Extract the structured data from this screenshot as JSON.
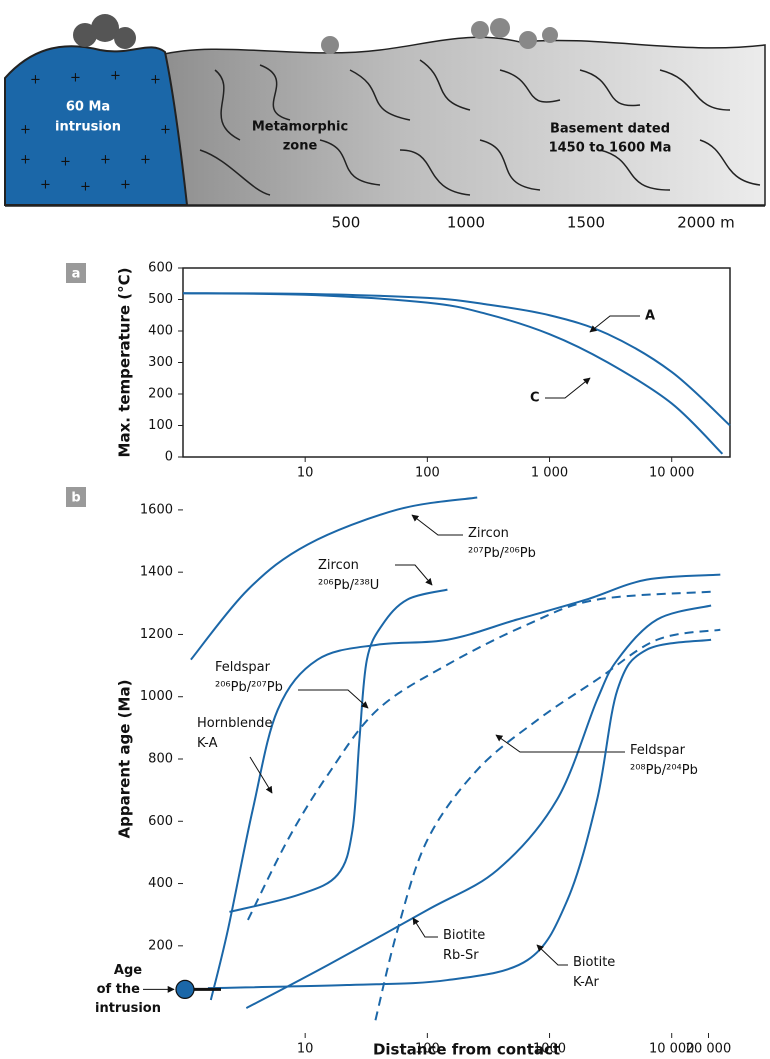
{
  "cross_section": {
    "intrusion_label": [
      "60 Ma",
      "intrusion"
    ],
    "zone_label": [
      "Metamorphic",
      "zone"
    ],
    "basement_label": [
      "Basement dated",
      "1450 to 1600 Ma"
    ],
    "scale_ticks": [
      500,
      1000,
      1500,
      {
        "value": 2000,
        "label": "2000 m"
      }
    ]
  },
  "chart_data": [
    {
      "type": "line",
      "panel": "a",
      "ylabel": "Max. temperature (°C)",
      "log_x": true,
      "xlim": [
        1,
        30000
      ],
      "ylim": [
        0,
        600
      ],
      "xticks": [
        10,
        100,
        {
          "value": 1000,
          "label": "1 000"
        },
        {
          "value": 10000,
          "label": "10 000"
        }
      ],
      "yticks": [
        0,
        100,
        200,
        300,
        400,
        500,
        600
      ],
      "series": [
        {
          "name": "A",
          "color": "#1b67a8",
          "x": [
            1,
            10,
            100,
            300,
            1000,
            3000,
            10000,
            30000
          ],
          "values": [
            520,
            518,
            505,
            485,
            450,
            390,
            270,
            100
          ]
        },
        {
          "name": "C",
          "color": "#1b67a8",
          "x": [
            1,
            10,
            100,
            300,
            1000,
            3000,
            10000,
            26000
          ],
          "values": [
            520,
            515,
            490,
            455,
            390,
            300,
            170,
            10
          ]
        }
      ]
    },
    {
      "type": "line",
      "panel": "b",
      "ylabel": "Apparent age (Ma)",
      "xlabel": "Distance from contact",
      "log_x": true,
      "xlim": [
        1,
        30000
      ],
      "ylim": [
        -80,
        1680
      ],
      "xticks": [
        10,
        100,
        1000,
        {
          "value": 10000,
          "label": "10 000"
        },
        {
          "value": 20000,
          "label": "20 000"
        }
      ],
      "yticks": [
        200,
        400,
        600,
        800,
        1000,
        1200,
        1400,
        1600
      ],
      "intrusion_age": {
        "label": [
          "Age",
          "of the",
          "intrusion"
        ],
        "value": 60
      },
      "series": [
        {
          "name": "Zircon ²⁰⁷Pb/²⁰⁶Pb",
          "color": "#1b67a8",
          "dashed": false,
          "x": [
            1.16,
            3.4,
            10.5,
            57,
            256
          ],
          "values": [
            1119,
            1344,
            1489,
            1601,
            1640
          ]
        },
        {
          "name": "Zircon ²⁰⁶Pb/²³⁸U",
          "color": "#1b67a8",
          "dashed": false,
          "x": [
            2.4,
            8.7,
            18.4,
            24.4,
            27.8,
            32,
            42.8,
            68.5,
            146
          ],
          "values": [
            309,
            363,
            428,
            572,
            862,
            1119,
            1231,
            1312,
            1344
          ]
        },
        {
          "name": "Hornblende K-A",
          "color": "#1b67a8",
          "dashed": false,
          "x": [
            1.69,
            2.33,
            3.72,
            5.96,
            12.6,
            38.9,
            146,
            543,
            2000,
            6240,
            25000
          ],
          "values": [
            26,
            251,
            637,
            958,
            1119,
            1167,
            1183,
            1248,
            1312,
            1376,
            1392
          ]
        },
        {
          "name": "Feldspar ²⁰⁶Pb/²⁰⁷Pb",
          "color": "#1b67a8",
          "dashed": true,
          "x": [
            3.4,
            7.2,
            15.3,
            39,
            146,
            660,
            2450,
            23000
          ],
          "values": [
            283,
            540,
            749,
            958,
            1103,
            1232,
            1312,
            1338
          ]
        },
        {
          "name": "Biotite Rb-Sr",
          "color": "#1b67a8",
          "dashed": false,
          "x": [
            3.3,
            15.3,
            100,
            375,
            1150,
            2450,
            3600,
            7600,
            21000
          ],
          "values": [
            0,
            138,
            315,
            444,
            669,
            990,
            1119,
            1248,
            1293
          ]
        },
        {
          "name": "Feldspar ²⁰⁸Pb/²⁰⁴Pb",
          "color": "#1b67a8",
          "dashed": true,
          "x": [
            37.6,
            57,
            100,
            256,
            800,
            2450,
            7600,
            25000
          ],
          "values": [
            -39,
            251,
            540,
            765,
            926,
            1055,
            1183,
            1215
          ]
        },
        {
          "name": "Biotite K-Ar",
          "color": "#1b67a8",
          "dashed": false,
          "x": [
            1.6,
            22,
            146,
            660,
            1400,
            2450,
            3600,
            6240,
            21000
          ],
          "values": [
            64,
            74,
            90,
            154,
            347,
            669,
            1023,
            1151,
            1183
          ]
        }
      ]
    }
  ]
}
